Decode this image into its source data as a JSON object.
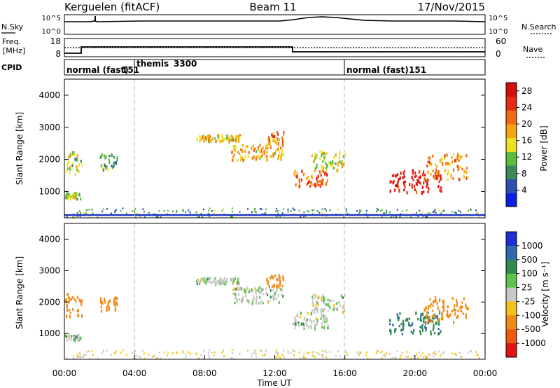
{
  "header": {
    "station": "Kerguelen (fitACF)",
    "beam": "Beam 11",
    "date": "17/Nov/2015"
  },
  "noise_panel": {
    "left_label": "N.Sky",
    "left_ticks": [
      "10^5",
      "10^0"
    ],
    "right_label": "N.Search",
    "right_ticks": [
      "10^5",
      "10^0"
    ]
  },
  "freq_panel": {
    "left_label_line1": "Freq.",
    "left_label_line2": "[MHz]",
    "left_ticks": [
      "18",
      "8"
    ],
    "right_label": "Nave",
    "right_ticks": [
      "60",
      "0"
    ]
  },
  "cpid_panel": {
    "label": "CPID",
    "segments": [
      {
        "name": "normal (fast)",
        "id": "151",
        "start_hour": 0,
        "end_hour": 4
      },
      {
        "name": "themis",
        "id": "3300",
        "start_hour": 4,
        "end_hour": 16
      },
      {
        "name": "normal (fast)",
        "id": "151",
        "start_hour": 16,
        "end_hour": 24
      }
    ]
  },
  "x_axis": {
    "label": "Time UT",
    "ticks": [
      "00:00",
      "04:00",
      "08:00",
      "12:00",
      "16:00",
      "20:00",
      "00:00"
    ]
  },
  "power_panel": {
    "ylabel": "Slant Range [km]",
    "yticks": [
      "1000",
      "2000",
      "3000",
      "4000"
    ],
    "colorbar_label": "Power [dB]",
    "colorbar_ticks": [
      "28",
      "24",
      "20",
      "16",
      "12",
      "8",
      "4"
    ]
  },
  "velocity_panel": {
    "ylabel": "Slant Range [km]",
    "yticks": [
      "1000",
      "2000",
      "3000",
      "4000"
    ],
    "colorbar_label": "Velocity [m s⁻¹]",
    "colorbar_ticks": [
      "1000",
      "500",
      "100",
      "25",
      "-25",
      "-100",
      "-500",
      "-1000"
    ]
  },
  "colors": {
    "power_scale": [
      "#0b1ee6",
      "#2d4fb0",
      "#3a8a5a",
      "#5cbd3c",
      "#ede221",
      "#f5a40f",
      "#f06a12",
      "#e62b12",
      "#d40d0d"
    ],
    "velocity_scale": [
      "#1f2fd6",
      "#2f6ab0",
      "#2f8a4f",
      "#5dc34a",
      "#c8c8c8",
      "#f2c318",
      "#f08a16",
      "#ef5a10",
      "#e21313"
    ]
  },
  "chart_data": [
    {
      "type": "heatmap",
      "title": "Kerguelen (fitACF) Beam 11 17/Nov/2015",
      "xlabel": "Time UT",
      "ylabel": "Slant Range [km]",
      "xlim": [
        0,
        24
      ],
      "ylim": [
        180,
        4500
      ],
      "colorbar": {
        "label": "Power [dB]",
        "range": [
          0,
          30
        ]
      },
      "regions": [
        {
          "t": [
            0.0,
            1.0
          ],
          "r": [
            1500,
            2300
          ],
          "value": 14
        },
        {
          "t": [
            0.0,
            0.9
          ],
          "r": [
            800,
            1000
          ],
          "value": 13
        },
        {
          "t": [
            2.0,
            3.0
          ],
          "r": [
            1700,
            2200
          ],
          "value": 10
        },
        {
          "t": [
            7.5,
            10.0
          ],
          "r": [
            2600,
            2800
          ],
          "value": 16
        },
        {
          "t": [
            9.5,
            12.5
          ],
          "r": [
            2000,
            2500
          ],
          "value": 18
        },
        {
          "t": [
            11.5,
            12.5
          ],
          "r": [
            2500,
            2900
          ],
          "value": 20
        },
        {
          "t": [
            13.0,
            15.0
          ],
          "r": [
            1200,
            1700
          ],
          "value": 22
        },
        {
          "t": [
            14.0,
            16.0
          ],
          "r": [
            1700,
            2300
          ],
          "value": 14
        },
        {
          "t": [
            18.5,
            21.5
          ],
          "r": [
            1000,
            1700
          ],
          "value": 28
        },
        {
          "t": [
            20.5,
            23.0
          ],
          "r": [
            1400,
            2200
          ],
          "value": 20
        }
      ]
    },
    {
      "type": "heatmap",
      "title": "Kerguelen (fitACF) Beam 11 17/Nov/2015",
      "xlabel": "Time UT",
      "ylabel": "Slant Range [km]",
      "xlim": [
        0,
        24
      ],
      "ylim": [
        180,
        4500
      ],
      "colorbar": {
        "label": "Velocity [m s⁻¹]",
        "range": [
          -1000,
          1000
        ]
      },
      "regions": [
        {
          "t": [
            0.0,
            1.0
          ],
          "r": [
            1500,
            2300
          ],
          "value": -200
        },
        {
          "t": [
            0.0,
            0.9
          ],
          "r": [
            800,
            1000
          ],
          "value": 0
        },
        {
          "t": [
            2.0,
            3.0
          ],
          "r": [
            1700,
            2200
          ],
          "value": -300
        },
        {
          "t": [
            7.5,
            10.0
          ],
          "r": [
            2600,
            2800
          ],
          "value": 0
        },
        {
          "t": [
            9.5,
            12.5
          ],
          "r": [
            2000,
            2500
          ],
          "value": 0
        },
        {
          "t": [
            11.5,
            12.5
          ],
          "r": [
            2500,
            2900
          ],
          "value": -150
        },
        {
          "t": [
            13.0,
            15.0
          ],
          "r": [
            1200,
            1700
          ],
          "value": 0
        },
        {
          "t": [
            14.0,
            16.0
          ],
          "r": [
            1700,
            2300
          ],
          "value": 0
        },
        {
          "t": [
            18.5,
            21.5
          ],
          "r": [
            1000,
            1700
          ],
          "value": 80
        },
        {
          "t": [
            20.5,
            23.0
          ],
          "r": [
            1400,
            2200
          ],
          "value": -400
        }
      ]
    }
  ]
}
